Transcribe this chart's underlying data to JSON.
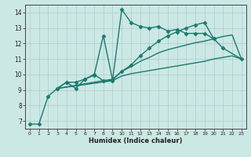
{
  "xlabel": "Humidex (Indice chaleur)",
  "background_color": "#cce8e4",
  "grid_color": "#aacccc",
  "line_color": "#1a7a6e",
  "xlim": [
    -0.5,
    23.5
  ],
  "ylim": [
    6.5,
    14.5
  ],
  "xticks": [
    0,
    1,
    2,
    3,
    4,
    5,
    6,
    7,
    8,
    9,
    10,
    11,
    12,
    13,
    14,
    15,
    16,
    17,
    18,
    19,
    20,
    21,
    22,
    23
  ],
  "yticks": [
    7,
    8,
    9,
    10,
    11,
    12,
    13,
    14
  ],
  "series": [
    {
      "x": [
        0,
        1,
        2,
        3,
        4,
        5,
        6,
        7,
        8,
        9,
        10,
        11,
        12,
        13,
        14,
        15,
        16,
        17,
        18,
        19,
        20,
        21,
        23
      ],
      "y": [
        6.8,
        6.8,
        8.6,
        9.1,
        9.5,
        9.1,
        9.7,
        10.0,
        9.6,
        9.6,
        14.2,
        13.35,
        13.1,
        13.0,
        13.1,
        12.8,
        12.9,
        12.65,
        12.65,
        12.65,
        12.3,
        11.7,
        11.0
      ],
      "marker": "D",
      "markersize": 2.5,
      "linewidth": 1.0,
      "has_marker": true
    },
    {
      "x": [
        3,
        9,
        10,
        11,
        12,
        13,
        14,
        15,
        16,
        17,
        18,
        19,
        20,
        21,
        22,
        23
      ],
      "y": [
        9.1,
        9.6,
        9.9,
        10.05,
        10.15,
        10.25,
        10.35,
        10.45,
        10.55,
        10.65,
        10.75,
        10.85,
        11.0,
        11.1,
        11.2,
        11.0
      ],
      "marker": null,
      "markersize": 0,
      "linewidth": 1.0,
      "has_marker": false
    },
    {
      "x": [
        3,
        9,
        10,
        11,
        12,
        13,
        14,
        15,
        16,
        17,
        18,
        19,
        20,
        21,
        22,
        23
      ],
      "y": [
        9.1,
        9.7,
        10.2,
        10.5,
        10.85,
        11.1,
        11.4,
        11.6,
        11.75,
        11.9,
        12.05,
        12.15,
        12.3,
        12.45,
        12.55,
        11.0
      ],
      "marker": null,
      "markersize": 0,
      "linewidth": 1.0,
      "has_marker": false
    },
    {
      "x": [
        3,
        4,
        5,
        6,
        7,
        8,
        9,
        10,
        11,
        12,
        13,
        14,
        15,
        16,
        17,
        18,
        19,
        20
      ],
      "y": [
        9.1,
        9.5,
        9.5,
        9.7,
        9.95,
        12.5,
        9.65,
        10.2,
        10.6,
        11.2,
        11.7,
        12.15,
        12.5,
        12.75,
        13.0,
        13.2,
        13.35,
        12.3
      ],
      "marker": "D",
      "markersize": 2.5,
      "linewidth": 1.0,
      "has_marker": true
    }
  ]
}
